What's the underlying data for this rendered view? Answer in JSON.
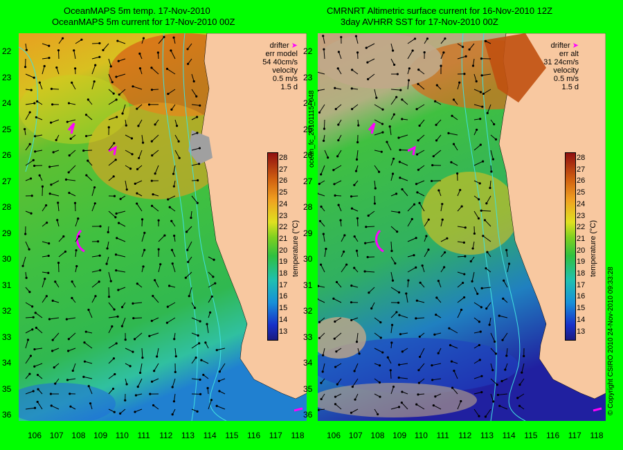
{
  "left_panel": {
    "title_line1": "OceanMAPS 5m temp. 17-Nov-2010",
    "title_line2": "OceanMAPS 5m current for 17-Nov-2010 00Z",
    "legend_drifter": "drifter",
    "legend_err": "err model",
    "legend_err_value": "54 40cm/s",
    "legend_velocity": "velocity",
    "legend_speed": "0.5 m/s",
    "legend_days": "1.5 d"
  },
  "right_panel": {
    "title_line1": "CMRNRT Altimetric surface current for 16-Nov-2010 12Z",
    "title_line2": "3day AVHRR SST for 17-Nov-2010 00Z",
    "legend_drifter": "drifter",
    "legend_err": "err alt",
    "legend_err_value": "31 24cm/s",
    "legend_velocity": "velocity",
    "legend_speed": "0.5 m/s",
    "legend_days": "1.5 d"
  },
  "latitudes": [
    "22",
    "23",
    "24",
    "25",
    "26",
    "27",
    "28",
    "29",
    "30",
    "31",
    "32",
    "33",
    "34",
    "35",
    "36"
  ],
  "longitudes": [
    "106",
    "107",
    "108",
    "109",
    "110",
    "111",
    "112",
    "113",
    "114",
    "115",
    "116",
    "117",
    "118"
  ],
  "colorbar": {
    "ticks": [
      "28",
      "27",
      "26",
      "25",
      "24",
      "23",
      "22",
      "21",
      "20",
      "19",
      "18",
      "17",
      "16",
      "15",
      "14",
      "13"
    ],
    "label": "temperature (°C)"
  },
  "vertical_id": "ocean_fc_20101115_048",
  "copyright": "© Copyright CSIRO 2010   24-Nov-2010 09:33:28",
  "colors": {
    "background": "#00ff00",
    "land": "#f8c8a0",
    "drifter": "#ff00ff",
    "bathy": "#40e0e0"
  }
}
